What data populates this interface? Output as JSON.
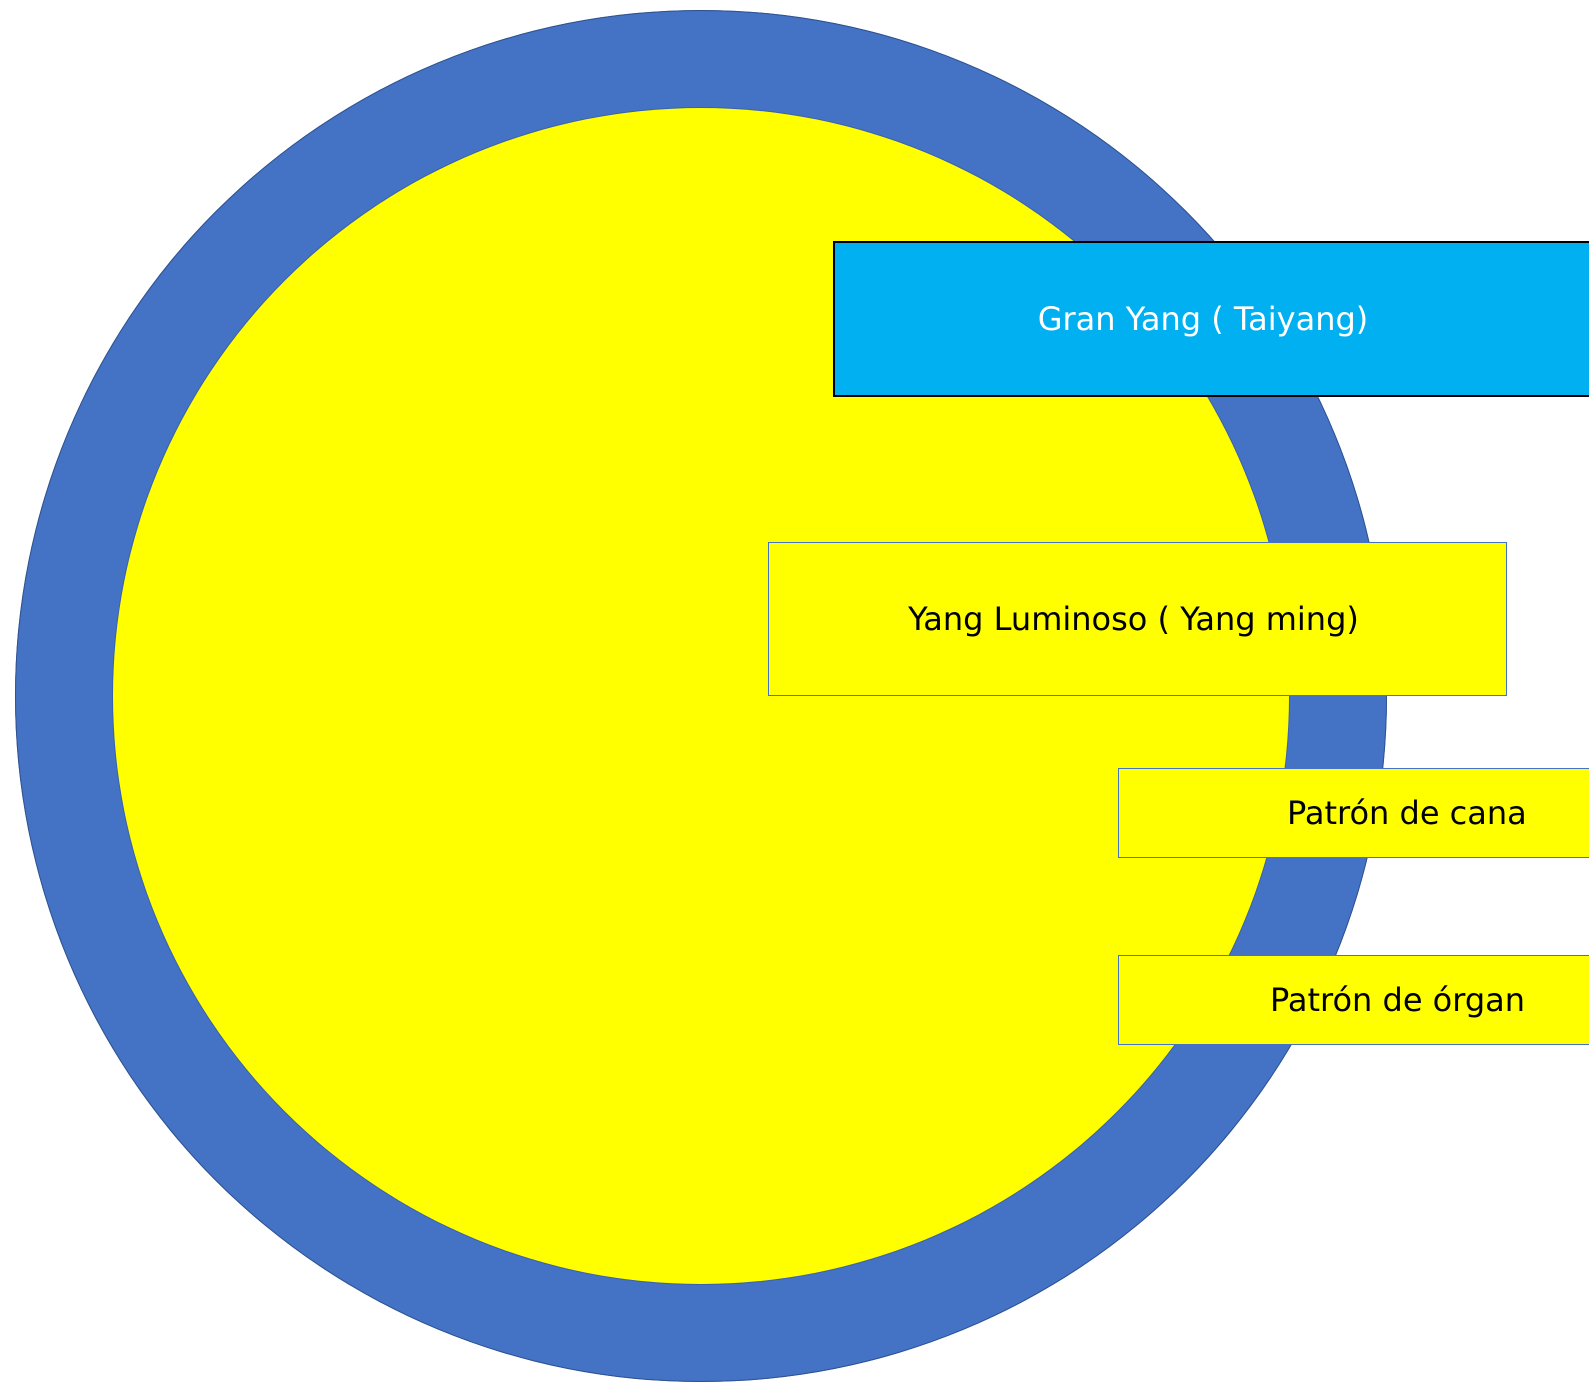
{
  "diagram": {
    "outer_circle_color": "#4472c4",
    "inner_circle_color": "#ffff00",
    "boxes": {
      "taiyang": {
        "label": "Gran Yang ( Taiyang)",
        "fill": "#00b0f0",
        "text_color": "#ffffff"
      },
      "yangming": {
        "label": "Yang Luminoso ( Yang ming)",
        "fill": "#ffff00",
        "text_color": "#000000"
      },
      "canal": {
        "label": "Patrón de cana",
        "fill": "#ffff00",
        "text_color": "#000000"
      },
      "organ": {
        "label": "Patrón de órgan",
        "fill": "#ffff00",
        "text_color": "#000000"
      }
    }
  }
}
